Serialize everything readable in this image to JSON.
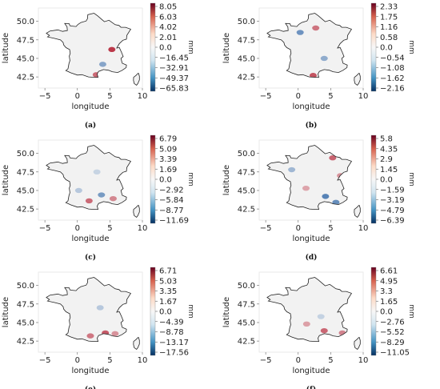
{
  "chart_data": [
    {
      "type": "heatmap",
      "caption": "(a)",
      "xlabel": "longitude",
      "ylabel": "latitude",
      "xticks": [
        -5,
        0,
        5,
        10
      ],
      "yticks": [
        42.5,
        45.0,
        47.5,
        50.0
      ],
      "xlim": [
        -6,
        10
      ],
      "ylim": [
        41,
        51.8
      ],
      "colorbar": {
        "unit": "mm",
        "ticks": [
          "8.05",
          "6.03",
          "4.02",
          "2.01",
          "0.0",
          "-16.45",
          "-32.91",
          "-49.37",
          "-65.83"
        ]
      },
      "hotspots": [
        {
          "lon": 5.3,
          "lat": 46.2,
          "value": 8.05
        },
        {
          "lon": 3.9,
          "lat": 44.2,
          "value": -40
        },
        {
          "lon": 2.9,
          "lat": 42.8,
          "value": 6.0
        }
      ]
    },
    {
      "type": "heatmap",
      "caption": "(b)",
      "xlabel": "longitude",
      "ylabel": "latitude",
      "xticks": [
        -5,
        0,
        5,
        10
      ],
      "yticks": [
        42.5,
        45.0,
        47.5,
        50.0
      ],
      "xlim": [
        -6,
        10
      ],
      "ylim": [
        41,
        51.8
      ],
      "colorbar": {
        "unit": "mm",
        "ticks": [
          "2.33",
          "1.75",
          "1.16",
          "0.58",
          "0.0",
          "-0.54",
          "-1.08",
          "-1.62",
          "-2.16"
        ]
      },
      "hotspots": [
        {
          "lon": 0.3,
          "lat": 48.5,
          "value": -1.6
        },
        {
          "lon": 2.7,
          "lat": 49.1,
          "value": 1.6
        },
        {
          "lon": 4.0,
          "lat": 45.0,
          "value": -1.2
        },
        {
          "lon": 2.3,
          "lat": 42.7,
          "value": 2.0
        }
      ]
    },
    {
      "type": "heatmap",
      "caption": "(c)",
      "xlabel": "longitude",
      "ylabel": "latitude",
      "xticks": [
        -5,
        0,
        5,
        10
      ],
      "yticks": [
        42.5,
        45.0,
        47.5,
        50.0
      ],
      "xlim": [
        -6,
        10
      ],
      "ylim": [
        41,
        51.8
      ],
      "colorbar": {
        "unit": "mm",
        "ticks": [
          "6.79",
          "5.09",
          "3.39",
          "1.69",
          "0.0",
          "-2.92",
          "-5.84",
          "-8.77",
          "-11.69"
        ]
      },
      "hotspots": [
        {
          "lon": 3.7,
          "lat": 44.4,
          "value": -8
        },
        {
          "lon": 1.8,
          "lat": 43.6,
          "value": 5.0
        },
        {
          "lon": 5.5,
          "lat": 43.9,
          "value": 4.0
        },
        {
          "lon": 0.2,
          "lat": 45.0,
          "value": -4
        },
        {
          "lon": 3.0,
          "lat": 47.5,
          "value": -3
        }
      ]
    },
    {
      "type": "heatmap",
      "caption": "(d)",
      "xlabel": "longitude",
      "ylabel": "latitude",
      "xticks": [
        -5,
        0,
        5,
        10
      ],
      "yticks": [
        42.5,
        45.0,
        47.5,
        50.0
      ],
      "xlim": [
        -6,
        10
      ],
      "ylim": [
        41,
        51.8
      ],
      "colorbar": {
        "unit": "mm",
        "ticks": [
          "5.8",
          "4.35",
          "2.9",
          "1.45",
          "0.0",
          "-1.59",
          "-3.19",
          "-4.79",
          "-6.39"
        ]
      },
      "hotspots": [
        {
          "lon": 4.2,
          "lat": 44.2,
          "value": -5.5
        },
        {
          "lon": 5.8,
          "lat": 43.4,
          "value": -5.0
        },
        {
          "lon": -1.0,
          "lat": 47.8,
          "value": -3.0
        },
        {
          "lon": 5.3,
          "lat": 49.4,
          "value": 4.5
        },
        {
          "lon": 1.2,
          "lat": 45.3,
          "value": 2.5
        },
        {
          "lon": 6.5,
          "lat": 47.0,
          "value": 3.0
        }
      ]
    },
    {
      "type": "heatmap",
      "caption": "(e)",
      "xlabel": "longitude",
      "ylabel": "latitude",
      "xticks": [
        -5,
        0,
        5,
        10
      ],
      "yticks": [
        42.5,
        45.0,
        47.5,
        50.0
      ],
      "xlim": [
        -6,
        10
      ],
      "ylim": [
        41,
        51.8
      ],
      "colorbar": {
        "unit": "mm",
        "ticks": [
          "6.71",
          "5.03",
          "3.35",
          "1.67",
          "0.0",
          "-4.39",
          "-8.78",
          "-13.17",
          "-17.56"
        ]
      },
      "hotspots": [
        {
          "lon": 4.3,
          "lat": 43.6,
          "value": 5.5
        },
        {
          "lon": 2.0,
          "lat": 43.2,
          "value": 4.5
        },
        {
          "lon": 3.5,
          "lat": 47.0,
          "value": -6.0
        },
        {
          "lon": 5.8,
          "lat": 43.5,
          "value": 3.5
        }
      ]
    },
    {
      "type": "heatmap",
      "caption": "(f)",
      "xlabel": "longitude",
      "ylabel": "latitude",
      "xticks": [
        -5,
        0,
        5,
        10
      ],
      "yticks": [
        42.5,
        45.0,
        47.5,
        50.0
      ],
      "xlim": [
        -6,
        10
      ],
      "ylim": [
        41,
        51.8
      ],
      "colorbar": {
        "unit": "mm",
        "ticks": [
          "6.61",
          "4.95",
          "3.3",
          "1.65",
          "0.0",
          "-2.76",
          "-5.52",
          "-8.29",
          "-11.05"
        ]
      },
      "hotspots": [
        {
          "lon": 4.0,
          "lat": 43.9,
          "value": 5.0
        },
        {
          "lon": 6.8,
          "lat": 43.6,
          "value": 4.0
        },
        {
          "lon": 1.3,
          "lat": 44.8,
          "value": 3.0
        },
        {
          "lon": 3.5,
          "lat": 45.8,
          "value": -3.0
        }
      ]
    }
  ],
  "colormap": {
    "negative": "#1f5aa0",
    "zero": "#f7f7f7",
    "positive": "#b2182b"
  },
  "outline_color": "#222222",
  "land_color": "#f2f2f2"
}
